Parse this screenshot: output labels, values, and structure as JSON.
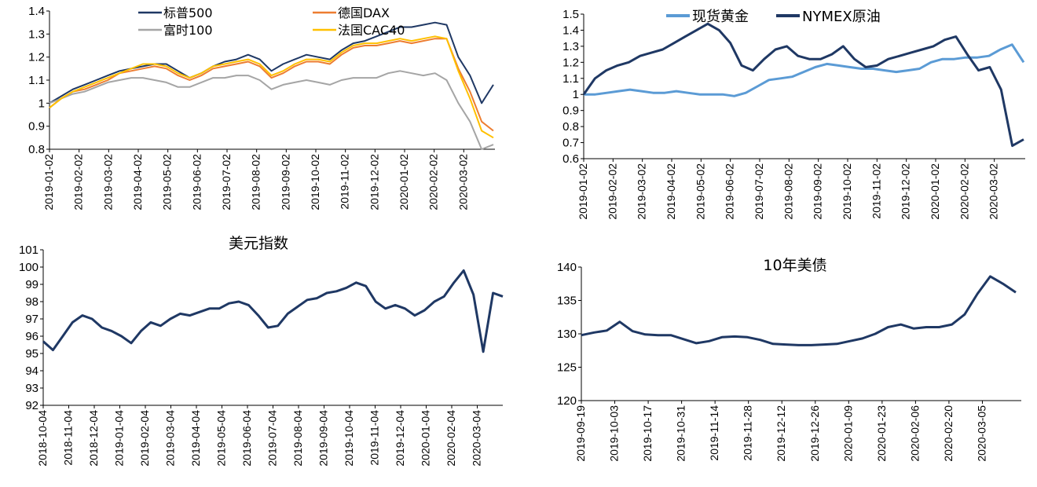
{
  "chart_data": [
    {
      "type": "line",
      "ylim": [
        0.8,
        1.4
      ],
      "yticks": [
        "0.8",
        "0.9",
        "1",
        "1.1",
        "1.2",
        "1.3",
        "1.4"
      ],
      "x_tick_labels": [
        "2019-01-02",
        "2019-02-02",
        "2019-03-02",
        "2019-04-02",
        "2019-05-02",
        "2019-06-02",
        "2019-07-02",
        "2019-08-02",
        "2019-09-02",
        "2019-10-02",
        "2019-11-02",
        "2019-12-02",
        "2020-01-02",
        "2020-02-02",
        "2020-03-02"
      ],
      "legend_position": "top",
      "series": [
        {
          "name": "标普500",
          "color": "#1f3864",
          "values": [
            1.0,
            1.03,
            1.06,
            1.08,
            1.1,
            1.12,
            1.14,
            1.15,
            1.16,
            1.17,
            1.17,
            1.14,
            1.11,
            1.13,
            1.16,
            1.18,
            1.19,
            1.21,
            1.19,
            1.14,
            1.17,
            1.19,
            1.21,
            1.2,
            1.19,
            1.23,
            1.26,
            1.27,
            1.29,
            1.31,
            1.33,
            1.33,
            1.34,
            1.35,
            1.34,
            1.2,
            1.12,
            1.0,
            1.08
          ]
        },
        {
          "name": "德国DAX",
          "color": "#ed7d31",
          "values": [
            0.98,
            1.02,
            1.05,
            1.06,
            1.08,
            1.1,
            1.13,
            1.14,
            1.15,
            1.16,
            1.15,
            1.12,
            1.1,
            1.12,
            1.15,
            1.16,
            1.17,
            1.18,
            1.16,
            1.11,
            1.13,
            1.16,
            1.18,
            1.18,
            1.17,
            1.21,
            1.24,
            1.25,
            1.25,
            1.26,
            1.27,
            1.26,
            1.27,
            1.28,
            1.28,
            1.15,
            1.05,
            0.92,
            0.88
          ]
        },
        {
          "name": "富时100",
          "color": "#a5a5a5",
          "values": [
            1.0,
            1.02,
            1.04,
            1.05,
            1.07,
            1.09,
            1.1,
            1.11,
            1.11,
            1.1,
            1.09,
            1.07,
            1.07,
            1.09,
            1.11,
            1.11,
            1.12,
            1.12,
            1.1,
            1.06,
            1.08,
            1.09,
            1.1,
            1.09,
            1.08,
            1.1,
            1.11,
            1.11,
            1.11,
            1.13,
            1.14,
            1.13,
            1.12,
            1.13,
            1.1,
            1.0,
            0.92,
            0.8,
            0.82
          ]
        },
        {
          "name": "法国CAC40",
          "color": "#ffc000",
          "values": [
            0.98,
            1.02,
            1.05,
            1.07,
            1.09,
            1.11,
            1.13,
            1.15,
            1.17,
            1.17,
            1.16,
            1.13,
            1.11,
            1.13,
            1.16,
            1.17,
            1.18,
            1.19,
            1.17,
            1.12,
            1.14,
            1.17,
            1.19,
            1.19,
            1.18,
            1.22,
            1.25,
            1.26,
            1.26,
            1.27,
            1.28,
            1.27,
            1.28,
            1.29,
            1.28,
            1.14,
            1.02,
            0.88,
            0.85
          ]
        }
      ]
    },
    {
      "type": "line",
      "ylim": [
        0.6,
        1.5
      ],
      "yticks": [
        "0.6",
        "0.7",
        "0.8",
        "0.9",
        "1",
        "1.1",
        "1.2",
        "1.3",
        "1.4",
        "1.5"
      ],
      "x_tick_labels": [
        "2019-01-02",
        "2019-02-02",
        "2019-03-02",
        "2019-04-02",
        "2019-05-02",
        "2019-06-02",
        "2019-07-02",
        "2019-08-02",
        "2019-09-02",
        "2019-10-02",
        "2019-11-02",
        "2019-12-02",
        "2020-01-02",
        "2020-02-02",
        "2020-03-02"
      ],
      "legend_position": "top",
      "series": [
        {
          "name": "现货黄金",
          "color": "#5b9bd5",
          "values": [
            1.0,
            1.0,
            1.01,
            1.02,
            1.03,
            1.02,
            1.01,
            1.01,
            1.02,
            1.01,
            1.0,
            1.0,
            1.0,
            0.99,
            1.01,
            1.05,
            1.09,
            1.1,
            1.11,
            1.14,
            1.17,
            1.19,
            1.18,
            1.17,
            1.16,
            1.16,
            1.15,
            1.14,
            1.15,
            1.16,
            1.2,
            1.22,
            1.22,
            1.23,
            1.23,
            1.24,
            1.28,
            1.31,
            1.2
          ]
        },
        {
          "name": "NYMEX原油",
          "color": "#1f3864",
          "values": [
            1.0,
            1.1,
            1.15,
            1.18,
            1.2,
            1.24,
            1.26,
            1.28,
            1.32,
            1.36,
            1.4,
            1.44,
            1.4,
            1.32,
            1.18,
            1.15,
            1.22,
            1.28,
            1.3,
            1.24,
            1.22,
            1.22,
            1.25,
            1.3,
            1.22,
            1.17,
            1.18,
            1.22,
            1.24,
            1.26,
            1.28,
            1.3,
            1.34,
            1.36,
            1.25,
            1.15,
            1.17,
            1.03,
            0.68,
            0.72
          ]
        }
      ]
    },
    {
      "type": "line",
      "title": "美元指数",
      "ylim": [
        92,
        101
      ],
      "yticks": [
        "92",
        "93",
        "94",
        "95",
        "96",
        "97",
        "98",
        "99",
        "100",
        "101"
      ],
      "x_tick_labels": [
        "2018-10-04",
        "2018-11-04",
        "2018-12-04",
        "2019-01-04",
        "2019-02-04",
        "2019-03-04",
        "2019-04-04",
        "2019-05-04",
        "2019-06-04",
        "2019-07-04",
        "2019-08-04",
        "2019-09-04",
        "2019-10-04",
        "2019-11-04",
        "2019-12-04",
        "2020-01-04",
        "2020-02-04",
        "2020-03-04"
      ],
      "series": [
        {
          "name": "",
          "color": "#1f3864",
          "values": [
            95.7,
            95.2,
            96.0,
            96.8,
            97.2,
            97.0,
            96.5,
            96.3,
            96.0,
            95.6,
            96.3,
            96.8,
            96.6,
            97.0,
            97.3,
            97.2,
            97.4,
            97.6,
            97.6,
            97.9,
            98.0,
            97.8,
            97.2,
            96.5,
            96.6,
            97.3,
            97.7,
            98.1,
            98.2,
            98.5,
            98.6,
            98.8,
            99.1,
            98.9,
            98.0,
            97.6,
            97.8,
            97.6,
            97.2,
            97.5,
            98.0,
            98.3,
            99.1,
            99.8,
            98.4,
            95.1,
            98.5,
            98.3
          ]
        }
      ]
    },
    {
      "type": "line",
      "title": "10年美债",
      "ylim": [
        120,
        140
      ],
      "yticks": [
        "120",
        "125",
        "130",
        "135",
        "140"
      ],
      "x_tick_labels": [
        "2019-09-19",
        "2019-10-03",
        "2019-10-17",
        "2019-10-31",
        "2019-11-14",
        "2019-11-28",
        "2019-12-12",
        "2019-12-26",
        "2020-01-09",
        "2020-01-23",
        "2020-02-06",
        "2020-02-20",
        "2020-03-05"
      ],
      "series": [
        {
          "name": "",
          "color": "#1f3864",
          "values": [
            129.8,
            130.2,
            130.5,
            131.8,
            130.4,
            129.9,
            129.8,
            129.8,
            129.2,
            128.6,
            128.9,
            129.5,
            129.6,
            129.5,
            129.1,
            128.5,
            128.4,
            128.3,
            128.3,
            128.4,
            128.5,
            128.9,
            129.3,
            130.0,
            131.0,
            131.4,
            130.8,
            131.0,
            131.0,
            131.4,
            132.9,
            136.0,
            138.6,
            137.5,
            136.2
          ]
        }
      ]
    }
  ]
}
